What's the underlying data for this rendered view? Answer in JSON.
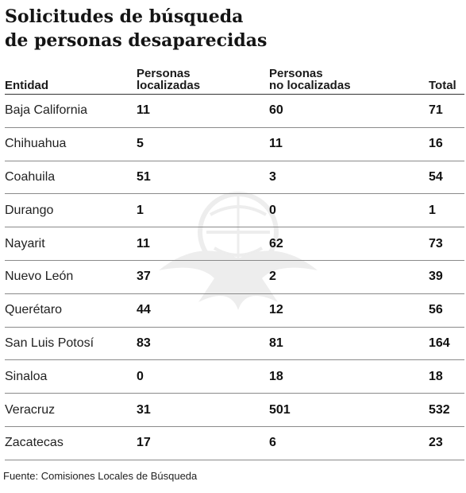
{
  "chart_data": {
    "type": "table",
    "title": [
      "Solicitudes de búsqueda",
      "de personas desaparecidas"
    ],
    "columns": [
      [
        "Entidad"
      ],
      [
        "Personas",
        "localizadas"
      ],
      [
        "Personas",
        "no localizadas"
      ],
      [
        "Total"
      ]
    ],
    "rows": [
      {
        "entidad": "Baja California",
        "localizadas": 11,
        "no_localizadas": 60,
        "total": 71
      },
      {
        "entidad": "Chihuahua",
        "localizadas": 5,
        "no_localizadas": 11,
        "total": 16
      },
      {
        "entidad": "Coahuila",
        "localizadas": 51,
        "no_localizadas": 3,
        "total": 54
      },
      {
        "entidad": "Durango",
        "localizadas": 1,
        "no_localizadas": 0,
        "total": 1
      },
      {
        "entidad": "Nayarit",
        "localizadas": 11,
        "no_localizadas": 62,
        "total": 73
      },
      {
        "entidad": "Nuevo León",
        "localizadas": 37,
        "no_localizadas": 2,
        "total": 39
      },
      {
        "entidad": "Querétaro",
        "localizadas": 44,
        "no_localizadas": 12,
        "total": 56
      },
      {
        "entidad": "San Luis Potosí",
        "localizadas": 83,
        "no_localizadas": 81,
        "total": 164
      },
      {
        "entidad": "Sinaloa",
        "localizadas": 0,
        "no_localizadas": 18,
        "total": 18
      },
      {
        "entidad": "Veracruz",
        "localizadas": 31,
        "no_localizadas": 501,
        "total": 532
      },
      {
        "entidad": "Zacatecas",
        "localizadas": 17,
        "no_localizadas": 6,
        "total": 23
      }
    ],
    "source": "Fuente: Comisiones Locales de Búsqueda"
  },
  "watermark_icon": "eagle-seal-icon"
}
